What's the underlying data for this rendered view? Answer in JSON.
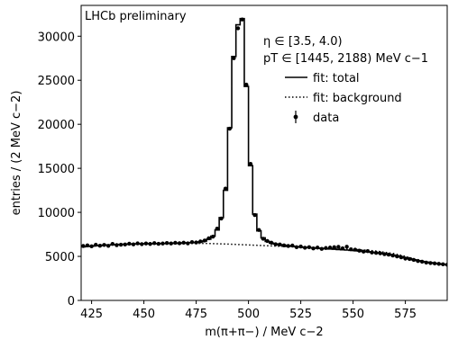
{
  "chart_data": {
    "type": "line",
    "title": "",
    "annotations": {
      "experiment": "LHCb preliminary",
      "eta_range": "η ∈ [3.5, 4.0)",
      "pt_range": "pT ∈ [1445, 2188) MeV c−1"
    },
    "xlabel": "m(π+π−) / MeV c−2",
    "ylabel": "entries / (2 MeV c−2)",
    "xlim": [
      420,
      595
    ],
    "ylim": [
      0,
      33500
    ],
    "xticks": [
      425,
      450,
      475,
      500,
      525,
      550,
      575
    ],
    "yticks": [
      0,
      5000,
      10000,
      15000,
      20000,
      25000,
      30000
    ],
    "grid": false,
    "legend": {
      "position": "upper-right",
      "entries": [
        "fit: total",
        "fit: background",
        "data"
      ]
    },
    "series": [
      {
        "name": "fit: total",
        "style": "solid-step",
        "color": "#000000",
        "x": [
          421,
          423,
          425,
          427,
          429,
          431,
          433,
          435,
          437,
          439,
          441,
          443,
          445,
          447,
          449,
          451,
          453,
          455,
          457,
          459,
          461,
          463,
          465,
          467,
          469,
          471,
          473,
          475,
          477,
          479,
          481,
          483,
          485,
          487,
          489,
          491,
          493,
          495,
          497,
          499,
          501,
          503,
          505,
          507,
          509,
          511,
          513,
          515,
          517,
          519,
          521,
          523,
          525,
          527,
          529,
          531,
          533,
          535,
          537,
          539,
          541,
          543,
          545,
          547,
          549,
          551,
          553,
          555,
          557,
          559,
          561,
          563,
          565,
          567,
          569,
          571,
          573,
          575,
          577,
          579,
          581,
          583,
          585,
          587,
          589,
          591,
          593,
          595
        ],
        "y": [
          6080,
          6130,
          6170,
          6210,
          6240,
          6270,
          6300,
          6320,
          6340,
          6360,
          6380,
          6400,
          6410,
          6420,
          6430,
          6440,
          6450,
          6455,
          6460,
          6470,
          6480,
          6490,
          6500,
          6510,
          6530,
          6550,
          6570,
          6600,
          6650,
          6750,
          6950,
          7300,
          8000,
          9400,
          12500,
          19600,
          27700,
          31300,
          32000,
          24300,
          15300,
          9800,
          7900,
          7100,
          6700,
          6500,
          6400,
          6320,
          6260,
          6200,
          6150,
          6100,
          6060,
          6020,
          5990,
          5960,
          5930,
          5900,
          5870,
          5840,
          5810,
          5780,
          5750,
          5720,
          5690,
          5650,
          5610,
          5570,
          5520,
          5470,
          5420,
          5360,
          5300,
          5230,
          5150,
          5060,
          4950,
          4840,
          4730,
          4620,
          4520,
          4430,
          4350,
          4280,
          4220,
          4160,
          4100,
          4050
        ]
      },
      {
        "name": "fit: background",
        "style": "dotted",
        "color": "#000000",
        "x": [
          421,
          430,
          440,
          450,
          460,
          470,
          480,
          490,
          500,
          510,
          520,
          530,
          540,
          550,
          560,
          570,
          575,
          580,
          585,
          590,
          595
        ],
        "y": [
          6080,
          6240,
          6360,
          6430,
          6460,
          6480,
          6470,
          6400,
          6300,
          6200,
          6100,
          6000,
          5900,
          5800,
          5640,
          5300,
          5000,
          4650,
          4350,
          4150,
          4050
        ]
      },
      {
        "name": "data",
        "style": "points-with-errors",
        "color": "#000000",
        "x": [
          421,
          423,
          425,
          427,
          429,
          431,
          433,
          435,
          437,
          439,
          441,
          443,
          445,
          447,
          449,
          451,
          453,
          455,
          457,
          459,
          461,
          463,
          465,
          467,
          469,
          471,
          473,
          475,
          477,
          479,
          481,
          483,
          485,
          487,
          489,
          491,
          493,
          495,
          497,
          499,
          501,
          503,
          505,
          507,
          509,
          511,
          513,
          515,
          517,
          519,
          521,
          523,
          525,
          527,
          529,
          531,
          533,
          535,
          537,
          539,
          541,
          543,
          545,
          547,
          549,
          551,
          553,
          555,
          557,
          559,
          561,
          563,
          565,
          567,
          569,
          571,
          573,
          575,
          577,
          579,
          581,
          583,
          585,
          587,
          589,
          591,
          593,
          595
        ],
        "y": [
          6180,
          6250,
          6150,
          6320,
          6210,
          6300,
          6200,
          6420,
          6280,
          6330,
          6350,
          6440,
          6360,
          6480,
          6390,
          6470,
          6410,
          6500,
          6430,
          6460,
          6520,
          6470,
          6540,
          6490,
          6560,
          6480,
          6620,
          6580,
          6700,
          6800,
          7050,
          7250,
          8150,
          9300,
          12700,
          19500,
          27500,
          30900,
          31900,
          24500,
          15500,
          9700,
          8000,
          7000,
          6750,
          6550,
          6380,
          6350,
          6250,
          6180,
          6230,
          6050,
          6120,
          5980,
          6050,
          5900,
          6000,
          5850,
          5950,
          6000,
          6050,
          6080,
          5920,
          6100,
          5800,
          5760,
          5650,
          5550,
          5600,
          5450,
          5400,
          5350,
          5250,
          5200,
          5100,
          5000,
          4900,
          4750,
          4700,
          4600,
          4480,
          4400,
          4300,
          4250,
          4200,
          4150,
          4100,
          4050
        ],
        "errors": [
          80,
          80,
          80,
          80,
          80,
          80,
          80,
          80,
          80,
          80,
          80,
          80,
          80,
          80,
          80,
          80,
          80,
          80,
          80,
          80,
          80,
          80,
          80,
          80,
          80,
          80,
          80,
          80,
          80,
          80,
          85,
          85,
          90,
          100,
          110,
          140,
          165,
          175,
          180,
          155,
          125,
          100,
          90,
          85,
          82,
          80,
          80,
          80,
          80,
          80,
          80,
          80,
          80,
          80,
          80,
          80,
          80,
          80,
          80,
          80,
          80,
          80,
          80,
          80,
          80,
          80,
          80,
          80,
          80,
          80,
          80,
          80,
          80,
          80,
          80,
          80,
          80,
          80,
          80,
          80,
          80,
          80,
          80,
          80,
          80,
          80,
          80,
          80
        ]
      }
    ]
  }
}
